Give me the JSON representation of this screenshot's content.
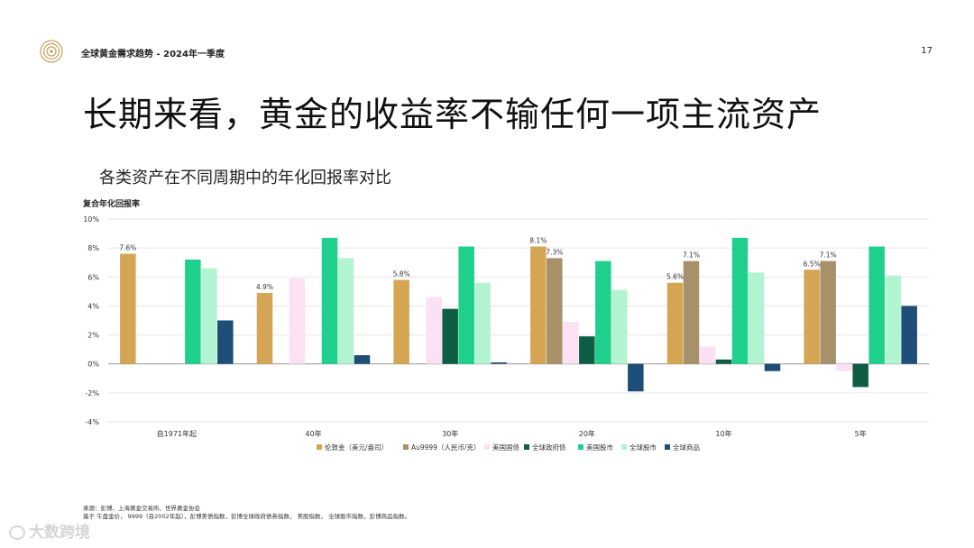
{
  "header": {
    "report_title": "全球黄金需求趋势 - 2024年一季度",
    "page_number": "17"
  },
  "headline": "长期来看，黄金的收益率不输任何一项主流资产",
  "subheadline": "各类资产在不同周期中的年化回报率对比",
  "source": {
    "line1": "来源：彭博、上海黄金交易所、世界黄金协会",
    "line2": "基于          午盘金价，       9999（自2002年起），彭博美债指数，彭博全球政府债券指数，       美股指数，       全球股市指数，彭博商品指数。"
  },
  "watermark": "大数跨境",
  "colors": {
    "brand_gold": "#c9a060",
    "axis": "#888888",
    "grid": "#e6e6e6"
  },
  "chart_data": {
    "type": "bar",
    "ylabel": "复合年化回报率",
    "ylim": [
      -4,
      10
    ],
    "yticks": [
      -4,
      -2,
      0,
      2,
      4,
      6,
      8,
      10
    ],
    "ytick_labels": [
      "-4%",
      "-2%",
      "0%",
      "2%",
      "4%",
      "6%",
      "8%",
      "10%"
    ],
    "categories": [
      "自1971年起",
      "40年",
      "30年",
      "20年",
      "10年",
      "5年"
    ],
    "legend_position": "bottom",
    "series": [
      {
        "name": "伦敦金（美元/盎司）",
        "color": "#d4a654",
        "values": [
          7.6,
          4.9,
          5.8,
          8.1,
          5.6,
          6.5
        ],
        "labels": [
          "7.6%",
          "4.9%",
          "5.8%",
          "8.1%",
          "5.6%",
          "6.5%"
        ]
      },
      {
        "name": "Au9999（人民币/克）",
        "color": "#a8916a",
        "values": [
          null,
          null,
          null,
          7.3,
          7.1,
          7.1
        ],
        "labels": [
          null,
          null,
          null,
          "7.3%",
          "7.1%",
          "7.1%"
        ]
      },
      {
        "name": "美国国债",
        "color": "#fce0f4",
        "values": [
          null,
          5.9,
          4.6,
          2.9,
          1.2,
          -0.5
        ]
      },
      {
        "name": "全球政府债",
        "color": "#0e5e44",
        "values": [
          null,
          null,
          3.8,
          1.9,
          0.3,
          -1.6
        ]
      },
      {
        "name": "美国股市",
        "color": "#1ed08c",
        "values": [
          7.2,
          8.7,
          8.1,
          7.1,
          8.7,
          8.1
        ]
      },
      {
        "name": "全球股市",
        "color": "#b2f3d0",
        "values": [
          6.6,
          7.3,
          5.6,
          5.1,
          6.3,
          6.1
        ]
      },
      {
        "name": "全球商品",
        "color": "#1e4d78",
        "values": [
          3.0,
          0.6,
          0.1,
          -1.9,
          -0.5,
          4.0
        ]
      }
    ]
  }
}
